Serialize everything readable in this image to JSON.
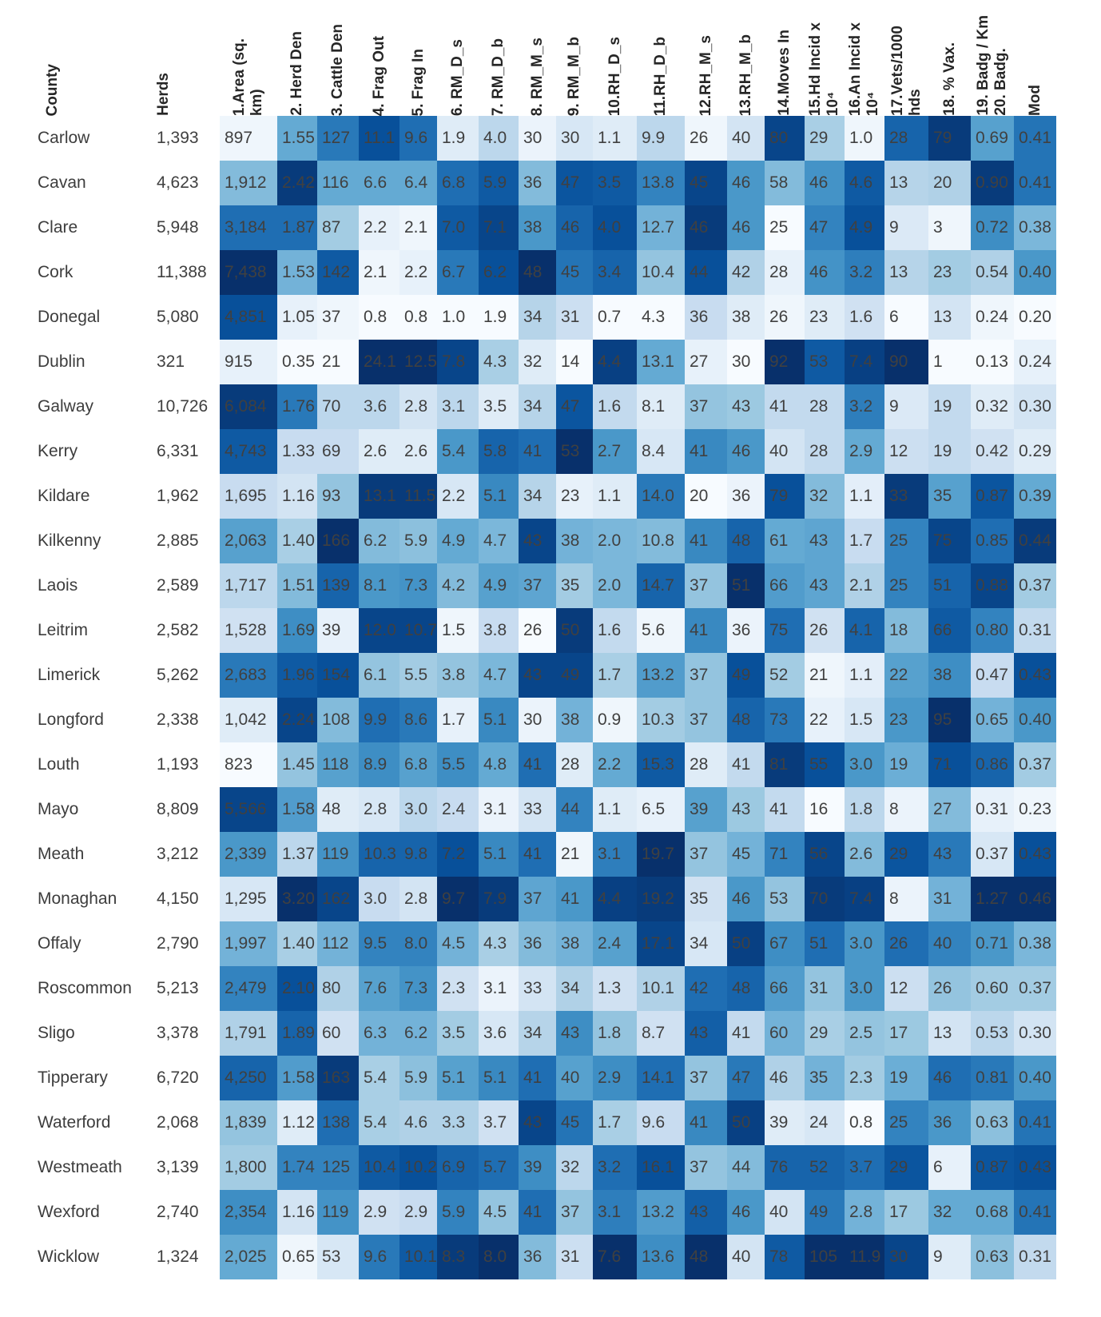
{
  "page": {
    "background": "#ffffff"
  },
  "chart_data": {
    "type": "heatmap",
    "row_header_label": "County",
    "columns": [
      {
        "key": "herds",
        "label": "Herds",
        "heat": false
      },
      {
        "key": "area",
        "label": "1.Area (sq.\nkm)",
        "heat": true
      },
      {
        "key": "herd_den",
        "label": "2. Herd Den",
        "heat": true
      },
      {
        "key": "cattle_den",
        "label": "3. Cattle Den",
        "heat": true
      },
      {
        "key": "frag_out",
        "label": "4. Frag Out",
        "heat": true
      },
      {
        "key": "frag_in",
        "label": "5. Frag In",
        "heat": true
      },
      {
        "key": "rm_d_s",
        "label": "6. RM_D_s",
        "heat": true
      },
      {
        "key": "rm_d_b",
        "label": "7. RM_D_b",
        "heat": true
      },
      {
        "key": "rm_m_s",
        "label": "8. RM_M_s",
        "heat": true
      },
      {
        "key": "rm_m_b",
        "label": "9. RM_M_b",
        "heat": true
      },
      {
        "key": "rh_d_s",
        "label": "10.RH_D_s",
        "heat": true
      },
      {
        "key": "rh_d_b",
        "label": "11.RH_D_b",
        "heat": true
      },
      {
        "key": "rh_m_s",
        "label": "12.RH_M_s",
        "heat": true
      },
      {
        "key": "rh_m_b",
        "label": "13.RH_M_b",
        "heat": true
      },
      {
        "key": "moves_in",
        "label": "14.Moves In",
        "heat": true
      },
      {
        "key": "hd_incid",
        "label": "15.Hd Incid x\n10⁴",
        "heat": true
      },
      {
        "key": "an_incid",
        "label": "16.An Incid x\n10⁴",
        "heat": true
      },
      {
        "key": "vets",
        "label": "17.Vets/1000\nhds",
        "heat": true
      },
      {
        "key": "pct_vax",
        "label": "18. % Vax.",
        "heat": true
      },
      {
        "key": "badg",
        "label": "19. Badg / Km\n20. Badg.",
        "heat": true
      },
      {
        "key": "mod",
        "label": "Mod",
        "heat": true
      }
    ],
    "rows": [
      {
        "county": "Carlow",
        "values": [
          "1,393",
          "897",
          "1.55",
          "127",
          "11.1",
          "9.6",
          "1.9",
          "4.0",
          "30",
          "30",
          "1.1",
          "9.9",
          "26",
          "40",
          "80",
          "29",
          "1.0",
          "28",
          "79",
          "0.69",
          "0.41"
        ]
      },
      {
        "county": "Cavan",
        "values": [
          "4,623",
          "1,912",
          "2.42",
          "116",
          "6.6",
          "6.4",
          "6.8",
          "5.9",
          "36",
          "47",
          "3.5",
          "13.8",
          "45",
          "46",
          "58",
          "46",
          "4.6",
          "13",
          "20",
          "0.90",
          "0.41"
        ]
      },
      {
        "county": "Clare",
        "values": [
          "5,948",
          "3,184",
          "1.87",
          "87",
          "2.2",
          "2.1",
          "7.0",
          "7.1",
          "38",
          "46",
          "4.0",
          "12.7",
          "46",
          "46",
          "25",
          "47",
          "4.9",
          "9",
          "3",
          "0.72",
          "0.38"
        ]
      },
      {
        "county": "Cork",
        "values": [
          "11,388",
          "7,438",
          "1.53",
          "142",
          "2.1",
          "2.2",
          "6.7",
          "6.2",
          "48",
          "45",
          "3.4",
          "10.4",
          "44",
          "42",
          "28",
          "46",
          "3.2",
          "13",
          "23",
          "0.54",
          "0.40"
        ]
      },
      {
        "county": "Donegal",
        "values": [
          "5,080",
          "4,851",
          "1.05",
          "37",
          "0.8",
          "0.8",
          "1.0",
          "1.9",
          "34",
          "31",
          "0.7",
          "4.3",
          "36",
          "38",
          "26",
          "23",
          "1.6",
          "6",
          "13",
          "0.24",
          "0.20"
        ]
      },
      {
        "county": "Dublin",
        "values": [
          "321",
          "915",
          "0.35",
          "21",
          "24.1",
          "12.5",
          "7.8",
          "4.3",
          "32",
          "14",
          "4.4",
          "13.1",
          "27",
          "30",
          "92",
          "53",
          "7.4",
          "90",
          "1",
          "0.13",
          "0.24"
        ]
      },
      {
        "county": "Galway",
        "values": [
          "10,726",
          "6,084",
          "1.76",
          "70",
          "3.6",
          "2.8",
          "3.1",
          "3.5",
          "34",
          "47",
          "1.6",
          "8.1",
          "37",
          "43",
          "41",
          "28",
          "3.2",
          "9",
          "19",
          "0.32",
          "0.30"
        ]
      },
      {
        "county": "Kerry",
        "values": [
          "6,331",
          "4,743",
          "1.33",
          "69",
          "2.6",
          "2.6",
          "5.4",
          "5.8",
          "41",
          "53",
          "2.7",
          "8.4",
          "41",
          "46",
          "40",
          "28",
          "2.9",
          "12",
          "19",
          "0.42",
          "0.29"
        ]
      },
      {
        "county": "Kildare",
        "values": [
          "1,962",
          "1,695",
          "1.16",
          "93",
          "13.1",
          "11.5",
          "2.2",
          "5.1",
          "34",
          "23",
          "1.1",
          "14.0",
          "20",
          "36",
          "79",
          "32",
          "1.1",
          "33",
          "35",
          "0.87",
          "0.39"
        ]
      },
      {
        "county": "Kilkenny",
        "values": [
          "2,885",
          "2,063",
          "1.40",
          "166",
          "6.2",
          "5.9",
          "4.9",
          "4.7",
          "43",
          "38",
          "2.0",
          "10.8",
          "41",
          "48",
          "61",
          "43",
          "1.7",
          "25",
          "75",
          "0.85",
          "0.44"
        ]
      },
      {
        "county": "Laois",
        "values": [
          "2,589",
          "1,717",
          "1.51",
          "139",
          "8.1",
          "7.3",
          "4.2",
          "4.9",
          "37",
          "35",
          "2.0",
          "14.7",
          "37",
          "51",
          "66",
          "43",
          "2.1",
          "25",
          "51",
          "0.88",
          "0.37"
        ]
      },
      {
        "county": "Leitrim",
        "values": [
          "2,582",
          "1,528",
          "1.69",
          "39",
          "12.0",
          "10.7",
          "1.5",
          "3.8",
          "26",
          "50",
          "1.6",
          "5.6",
          "41",
          "36",
          "75",
          "26",
          "4.1",
          "18",
          "66",
          "0.80",
          "0.31"
        ]
      },
      {
        "county": "Limerick",
        "values": [
          "5,262",
          "2,683",
          "1.96",
          "154",
          "6.1",
          "5.5",
          "3.8",
          "4.7",
          "43",
          "49",
          "1.7",
          "13.2",
          "37",
          "49",
          "52",
          "21",
          "1.1",
          "22",
          "38",
          "0.47",
          "0.43"
        ]
      },
      {
        "county": "Longford",
        "values": [
          "2,338",
          "1,042",
          "2.24",
          "108",
          "9.9",
          "8.6",
          "1.7",
          "5.1",
          "30",
          "38",
          "0.9",
          "10.3",
          "37",
          "48",
          "73",
          "22",
          "1.5",
          "23",
          "95",
          "0.65",
          "0.40"
        ]
      },
      {
        "county": "Louth",
        "values": [
          "1,193",
          "823",
          "1.45",
          "118",
          "8.9",
          "6.8",
          "5.5",
          "4.8",
          "41",
          "28",
          "2.2",
          "15.3",
          "28",
          "41",
          "81",
          "55",
          "3.0",
          "19",
          "71",
          "0.86",
          "0.37"
        ]
      },
      {
        "county": "Mayo",
        "values": [
          "8,809",
          "5,566",
          "1.58",
          "48",
          "2.8",
          "3.0",
          "2.4",
          "3.1",
          "33",
          "44",
          "1.1",
          "6.5",
          "39",
          "43",
          "41",
          "16",
          "1.8",
          "8",
          "27",
          "0.31",
          "0.23"
        ]
      },
      {
        "county": "Meath",
        "values": [
          "3,212",
          "2,339",
          "1.37",
          "119",
          "10.3",
          "9.8",
          "7.2",
          "5.1",
          "41",
          "21",
          "3.1",
          "19.7",
          "37",
          "45",
          "71",
          "56",
          "2.6",
          "29",
          "43",
          "0.37",
          "0.43"
        ]
      },
      {
        "county": "Monaghan",
        "values": [
          "4,150",
          "1,295",
          "3.20",
          "162",
          "3.0",
          "2.8",
          "9.7",
          "7.9",
          "37",
          "41",
          "4.4",
          "19.2",
          "35",
          "46",
          "53",
          "70",
          "7.4",
          "8",
          "31",
          "1.27",
          "0.46"
        ]
      },
      {
        "county": "Offaly",
        "values": [
          "2,790",
          "1,997",
          "1.40",
          "112",
          "9.5",
          "8.0",
          "4.5",
          "4.3",
          "36",
          "38",
          "2.4",
          "17.1",
          "34",
          "50",
          "67",
          "51",
          "3.0",
          "26",
          "40",
          "0.71",
          "0.38"
        ]
      },
      {
        "county": "Roscommon",
        "values": [
          "5,213",
          "2,479",
          "2.10",
          "80",
          "7.6",
          "7.3",
          "2.3",
          "3.1",
          "33",
          "34",
          "1.3",
          "10.1",
          "42",
          "48",
          "66",
          "31",
          "3.0",
          "12",
          "26",
          "0.60",
          "0.37"
        ]
      },
      {
        "county": "Sligo",
        "values": [
          "3,378",
          "1,791",
          "1.89",
          "60",
          "6.3",
          "6.2",
          "3.5",
          "3.6",
          "34",
          "43",
          "1.8",
          "8.7",
          "43",
          "41",
          "60",
          "29",
          "2.5",
          "17",
          "13",
          "0.53",
          "0.30"
        ]
      },
      {
        "county": "Tipperary",
        "values": [
          "6,720",
          "4,250",
          "1.58",
          "163",
          "5.4",
          "5.9",
          "5.1",
          "5.1",
          "41",
          "40",
          "2.9",
          "14.1",
          "37",
          "47",
          "46",
          "35",
          "2.3",
          "19",
          "46",
          "0.81",
          "0.40"
        ]
      },
      {
        "county": "Waterford",
        "values": [
          "2,068",
          "1,839",
          "1.12",
          "138",
          "5.4",
          "4.6",
          "3.3",
          "3.7",
          "43",
          "45",
          "1.7",
          "9.6",
          "41",
          "50",
          "39",
          "24",
          "0.8",
          "25",
          "36",
          "0.63",
          "0.41"
        ]
      },
      {
        "county": "Westmeath",
        "values": [
          "3,139",
          "1,800",
          "1.74",
          "125",
          "10.4",
          "10.2",
          "6.9",
          "5.7",
          "39",
          "32",
          "3.2",
          "16.1",
          "37",
          "44",
          "76",
          "52",
          "3.7",
          "29",
          "6",
          "0.87",
          "0.43"
        ]
      },
      {
        "county": "Wexford",
        "values": [
          "2,740",
          "2,354",
          "1.16",
          "119",
          "2.9",
          "2.9",
          "5.9",
          "4.5",
          "41",
          "37",
          "3.1",
          "13.2",
          "43",
          "46",
          "40",
          "49",
          "2.8",
          "17",
          "32",
          "0.68",
          "0.41"
        ]
      },
      {
        "county": "Wicklow",
        "values": [
          "1,324",
          "2,025",
          "0.65",
          "53",
          "9.6",
          "10.1",
          "8.3",
          "8.0",
          "36",
          "31",
          "7.6",
          "13.6",
          "48",
          "40",
          "78",
          "105",
          "11.9",
          "30",
          "9",
          "0.63",
          "0.31"
        ]
      }
    ],
    "color_scale": {
      "normalization": "per-column rank",
      "stops": [
        "#f7fbff",
        "#deebf7",
        "#c6dbef",
        "#9ecae1",
        "#6baed6",
        "#4292c6",
        "#2171b5",
        "#08519c",
        "#08306b"
      ]
    },
    "text_color": "#404040"
  }
}
